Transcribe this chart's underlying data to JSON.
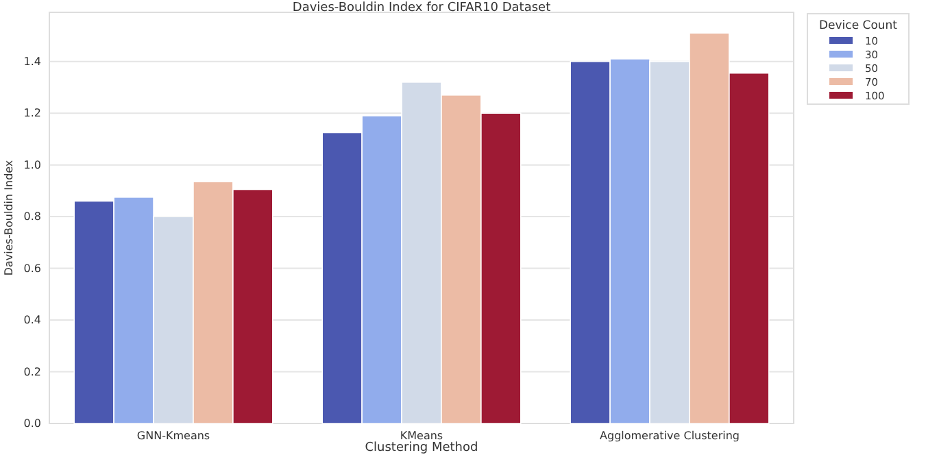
{
  "chart_data": {
    "type": "bar",
    "title": "Davies-Bouldin Index for CIFAR10 Dataset",
    "xlabel": "Clustering Method",
    "ylabel": "Davies-Bouldin Index",
    "legend_title": "Device Count",
    "categories": [
      "GNN-Kmeans",
      "KMeans",
      "Agglomerative Clustering"
    ],
    "series": [
      {
        "name": "10",
        "color": "#4b58b0",
        "values": [
          0.86,
          1.125,
          1.4
        ]
      },
      {
        "name": "30",
        "color": "#91acec",
        "values": [
          0.875,
          1.19,
          1.41
        ]
      },
      {
        "name": "50",
        "color": "#d1dae8",
        "values": [
          0.8,
          1.32,
          1.4
        ]
      },
      {
        "name": "70",
        "color": "#ecbba5",
        "values": [
          0.935,
          1.27,
          1.51
        ]
      },
      {
        "name": "100",
        "color": "#9e1a34",
        "values": [
          0.905,
          1.2,
          1.355
        ]
      }
    ],
    "ylim": [
      0,
      1.59
    ],
    "yticks": [
      {
        "value": 0,
        "label": "0.0"
      },
      {
        "value": 0.2,
        "label": "0.2"
      },
      {
        "value": 0.4,
        "label": "0.4"
      },
      {
        "value": 0.6,
        "label": "0.6"
      },
      {
        "value": 0.8,
        "label": "0.8"
      },
      {
        "value": 1,
        "label": "1.0"
      },
      {
        "value": 1.2,
        "label": "1.2"
      },
      {
        "value": 1.4,
        "label": "1.4"
      }
    ],
    "grid": "y",
    "legend": "top right"
  }
}
